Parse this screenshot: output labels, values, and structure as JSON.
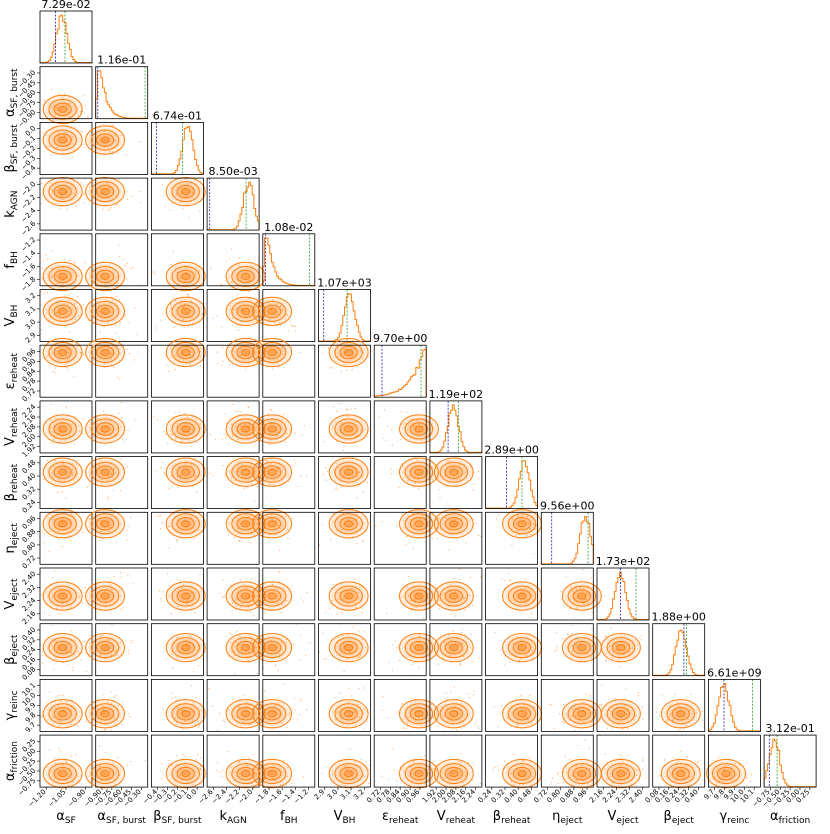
{
  "chart_data": {
    "type": "corner",
    "parameters": [
      {
        "key": "alpha_SF",
        "label": "α",
        "sub": "SF",
        "title": "7.29e-02",
        "ticks": [
          "−1.20",
          "−1.05",
          "−0.90"
        ],
        "peak": 0.42,
        "lines": [
          0.3,
          0.48
        ]
      },
      {
        "key": "alpha_SF_burst",
        "label": "α",
        "sub": "SF, burst",
        "title": "1.16e-01",
        "ticks": [
          "−0.90",
          "−0.75",
          "−0.60",
          "−0.45",
          "−0.30"
        ],
        "peak": 0.1,
        "lines": [
          0.04,
          0.95
        ]
      },
      {
        "key": "beta_SF_burst",
        "label": "β",
        "sub": "SF, burst",
        "title": "6.74e-01",
        "ticks": [
          "−0.4",
          "−0.3",
          "−0.2",
          "−0.1",
          "0.0"
        ],
        "peak": 0.7,
        "lines": [
          0.1,
          0.6
        ]
      },
      {
        "key": "k_AGN",
        "label": "k",
        "sub": "AGN",
        "title": "8.50e-03",
        "ticks": [
          "−2.6",
          "−2.4",
          "−2.2",
          "−2.0"
        ],
        "peak": 0.8,
        "lines": [
          0.05,
          0.75
        ]
      },
      {
        "key": "f_BH",
        "label": "f",
        "sub": "BH",
        "title": "1.08e-02",
        "ticks": [
          "−1.8",
          "−1.6",
          "−1.4",
          "−1.2"
        ],
        "peak": 0.1,
        "lines": [
          0.05,
          0.9
        ]
      },
      {
        "key": "V_BH",
        "label": "V",
        "sub": "BH",
        "title": "1.07e+03",
        "ticks": [
          "2.9",
          "3.0",
          "3.1",
          "3.2"
        ],
        "peak": 0.6,
        "lines": [
          0.1,
          0.55
        ]
      },
      {
        "key": "eps_reheat",
        "label": "ε",
        "sub": "reheat",
        "title": "9.70e+00",
        "ticks": [
          "0.72",
          "0.78",
          "0.84",
          "0.90",
          "0.96"
        ],
        "peak": 0.95,
        "lines": [
          0.15,
          0.9
        ]
      },
      {
        "key": "V_reheat",
        "label": "V",
        "sub": "reheat",
        "title": "1.19e+02",
        "ticks": [
          "1.92",
          "2.00",
          "2.08",
          "2.16",
          "2.24"
        ],
        "peak": 0.45,
        "lines": [
          0.35,
          0.55
        ]
      },
      {
        "key": "beta_reheat",
        "label": "β",
        "sub": "reheat",
        "title": "2.89e+00",
        "ticks": [
          "0.24",
          "0.32",
          "0.40",
          "0.48"
        ],
        "peak": 0.75,
        "lines": [
          0.4,
          0.7
        ]
      },
      {
        "key": "eta_eject",
        "label": "η",
        "sub": "eject",
        "title": "9.56e+00",
        "ticks": [
          "0.72",
          "0.80",
          "0.88",
          "0.96"
        ],
        "peak": 0.85,
        "lines": [
          0.2,
          0.9
        ]
      },
      {
        "key": "V_eject",
        "label": "V",
        "sub": "eject",
        "title": "1.73e+02",
        "ticks": [
          "2.16",
          "2.24",
          "2.32",
          "2.40"
        ],
        "peak": 0.45,
        "lines": [
          0.45,
          0.75
        ]
      },
      {
        "key": "beta_eject",
        "label": "β",
        "sub": "eject",
        "title": "1.88e+00",
        "ticks": [
          "0.08",
          "0.16",
          "0.24",
          "0.32",
          "0.40"
        ],
        "peak": 0.55,
        "lines": [
          0.6,
          0.65
        ]
      },
      {
        "key": "gamma_reinc",
        "label": "γ",
        "sub": "reinc",
        "title": "6.61e+09",
        "ticks": [
          "9.7",
          "9.8",
          "9.9",
          "10.0",
          "10.1"
        ],
        "peak": 0.3,
        "lines": [
          0.3,
          0.85
        ]
      },
      {
        "key": "alpha_friction",
        "label": "α",
        "sub": "friction",
        "title": "3.12e-01",
        "ticks": [
          "−0.75",
          "−0.50",
          "−0.25",
          "0.00",
          "0.25"
        ],
        "peak": 0.2,
        "lines": [
          0.1,
          0.25
        ]
      }
    ]
  }
}
